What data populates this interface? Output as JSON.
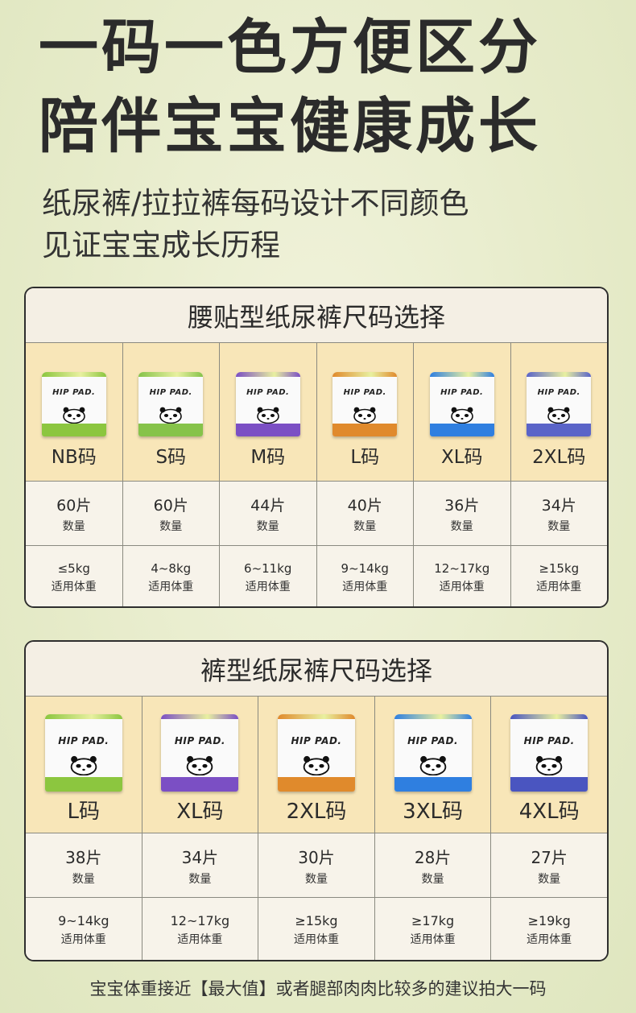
{
  "headline": [
    "一码一色方便区分",
    "陪伴宝宝健康成长"
  ],
  "subtitle": [
    "纸尿裤/拉拉裤每码设计不同颜色",
    "见证宝宝成长历程"
  ],
  "brand": "HIP PAD.",
  "tables": [
    {
      "title": "腰贴型纸尿裤尺码选择",
      "count_caption": "数量",
      "weight_caption": "适用体重",
      "sizes": [
        {
          "label": "NB码",
          "count": "60片",
          "weight": "≤5kg",
          "color": "#8cc63f"
        },
        {
          "label": "S码",
          "count": "60片",
          "weight": "4~8kg",
          "color": "#86c34a"
        },
        {
          "label": "M码",
          "count": "44片",
          "weight": "6~11kg",
          "color": "#7b4fc4"
        },
        {
          "label": "L码",
          "count": "40片",
          "weight": "9~14kg",
          "color": "#e08a2c"
        },
        {
          "label": "XL码",
          "count": "36片",
          "weight": "12~17kg",
          "color": "#2f7fe0"
        },
        {
          "label": "2XL码",
          "count": "34片",
          "weight": "≥15kg",
          "color": "#5a64c8"
        }
      ]
    },
    {
      "title": "裤型纸尿裤尺码选择",
      "count_caption": "数量",
      "weight_caption": "适用体重",
      "sizes": [
        {
          "label": "L码",
          "count": "38片",
          "weight": "9~14kg",
          "color": "#8cc63f"
        },
        {
          "label": "XL码",
          "count": "34片",
          "weight": "12~17kg",
          "color": "#7b4fc4"
        },
        {
          "label": "2XL码",
          "count": "30片",
          "weight": "≥15kg",
          "color": "#e08a2c"
        },
        {
          "label": "3XL码",
          "count": "28片",
          "weight": "≥17kg",
          "color": "#2f7fe0"
        },
        {
          "label": "4XL码",
          "count": "27片",
          "weight": "≥19kg",
          "color": "#4a55c0"
        }
      ]
    }
  ],
  "footer": "宝宝体重接近【最大值】或者腿部肉肉比较多的建议拍大一码"
}
